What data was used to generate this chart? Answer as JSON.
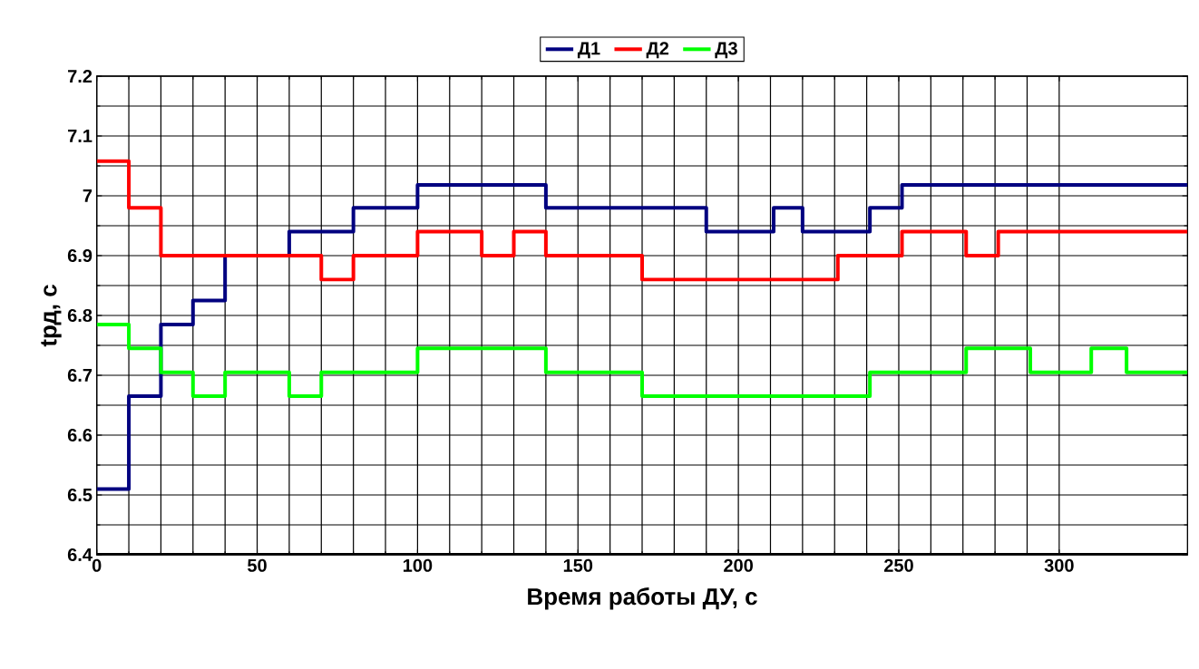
{
  "chart_data": {
    "type": "step",
    "xlabel": "Время работы ДУ, с",
    "ylabel": "tрд, с",
    "xlim": [
      0,
      340
    ],
    "ylim": [
      6.4,
      7.2
    ],
    "xticks": [
      0,
      50,
      100,
      150,
      200,
      250,
      300
    ],
    "yticks": [
      6.4,
      6.5,
      6.6,
      6.7,
      6.8,
      6.9,
      7,
      7.1,
      7.2
    ],
    "grid": true,
    "legend": "top",
    "series": [
      {
        "name": "Д1",
        "color": "#000080",
        "x": [
          0,
          10,
          20,
          30,
          40,
          60,
          80,
          100,
          140,
          190,
          211,
          220,
          241,
          251,
          340
        ],
        "values": [
          6.51,
          6.665,
          6.785,
          6.825,
          6.9,
          6.94,
          6.98,
          7.018,
          6.98,
          6.94,
          6.98,
          6.94,
          6.98,
          7.018,
          7.018
        ]
      },
      {
        "name": "Д2",
        "color": "#ff0000",
        "x": [
          0,
          10,
          20,
          70,
          80,
          100,
          120,
          130,
          140,
          170,
          231,
          251,
          271,
          281,
          340
        ],
        "values": [
          7.058,
          6.98,
          6.9,
          6.86,
          6.9,
          6.94,
          6.9,
          6.94,
          6.9,
          6.86,
          6.9,
          6.94,
          6.9,
          6.94,
          6.94
        ]
      },
      {
        "name": "Д3",
        "color": "#00ff00",
        "x": [
          0,
          10,
          20,
          30,
          40,
          60,
          70,
          100,
          140,
          170,
          241,
          271,
          291,
          310,
          321,
          340
        ],
        "values": [
          6.785,
          6.745,
          6.705,
          6.665,
          6.705,
          6.665,
          6.705,
          6.745,
          6.705,
          6.665,
          6.705,
          6.745,
          6.705,
          6.745,
          6.705,
          6.705
        ]
      }
    ]
  }
}
